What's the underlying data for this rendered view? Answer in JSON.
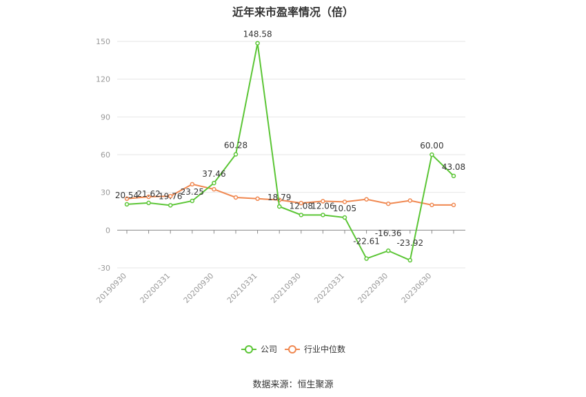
{
  "chart_data": {
    "type": "line",
    "title": "近年来市盈率情况（倍）",
    "source": "数据来源：恒生聚源",
    "x_tick_labels": [
      "20190930",
      "20200331",
      "20200930",
      "20210331",
      "20210930",
      "20220331",
      "20220930",
      "20230630"
    ],
    "ylim": [
      -30,
      150
    ],
    "yticks": [
      -30,
      0,
      30,
      60,
      90,
      120,
      150
    ],
    "grid": true,
    "legend_position": "bottom",
    "series": [
      {
        "name": "公司",
        "color": "#5ac534",
        "values": [
          20.54,
          21.62,
          19.76,
          23.25,
          37.46,
          60.28,
          148.58,
          18.79,
          12.08,
          12.06,
          10.05,
          -22.61,
          -16.36,
          -23.92,
          60.0,
          43.08
        ],
        "labels": [
          "20.54",
          "21.62",
          "19.76",
          "23.25",
          "37.46",
          "60.28",
          "148.58",
          "18.79",
          "12.08",
          "12.06",
          "10.05",
          "-22.61",
          "-16.36",
          "-23.92",
          "60.00",
          "43.08"
        ]
      },
      {
        "name": "行业中位数",
        "color": "#f0874f",
        "values": [
          25.0,
          26.5,
          27.0,
          36.5,
          32.5,
          26.0,
          25.0,
          24.0,
          21.5,
          23.0,
          22.5,
          24.5,
          21.0,
          23.5,
          20.0,
          20.0
        ]
      }
    ]
  }
}
